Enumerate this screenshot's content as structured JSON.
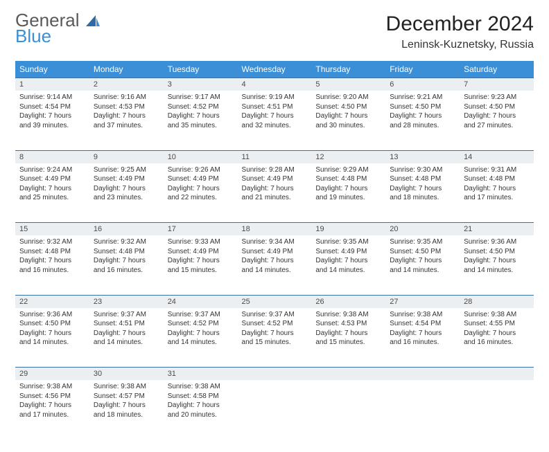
{
  "brand": {
    "name1": "General",
    "name2": "Blue"
  },
  "title": "December 2024",
  "location": "Leninsk-Kuznetsky, Russia",
  "columns": [
    "Sunday",
    "Monday",
    "Tuesday",
    "Wednesday",
    "Thursday",
    "Friday",
    "Saturday"
  ],
  "colors": {
    "header_bg": "#3a8fd6",
    "header_fg": "#ffffff",
    "daynum_bg": "#eceff1",
    "daynum_border": "#3a6ea5",
    "logo_gray": "#5a5a5a",
    "logo_blue": "#3a8fd6"
  },
  "weeks": [
    [
      {
        "n": "1",
        "sr": "Sunrise: 9:14 AM",
        "ss": "Sunset: 4:54 PM",
        "dl1": "Daylight: 7 hours",
        "dl2": "and 39 minutes."
      },
      {
        "n": "2",
        "sr": "Sunrise: 9:16 AM",
        "ss": "Sunset: 4:53 PM",
        "dl1": "Daylight: 7 hours",
        "dl2": "and 37 minutes."
      },
      {
        "n": "3",
        "sr": "Sunrise: 9:17 AM",
        "ss": "Sunset: 4:52 PM",
        "dl1": "Daylight: 7 hours",
        "dl2": "and 35 minutes."
      },
      {
        "n": "4",
        "sr": "Sunrise: 9:19 AM",
        "ss": "Sunset: 4:51 PM",
        "dl1": "Daylight: 7 hours",
        "dl2": "and 32 minutes."
      },
      {
        "n": "5",
        "sr": "Sunrise: 9:20 AM",
        "ss": "Sunset: 4:50 PM",
        "dl1": "Daylight: 7 hours",
        "dl2": "and 30 minutes."
      },
      {
        "n": "6",
        "sr": "Sunrise: 9:21 AM",
        "ss": "Sunset: 4:50 PM",
        "dl1": "Daylight: 7 hours",
        "dl2": "and 28 minutes."
      },
      {
        "n": "7",
        "sr": "Sunrise: 9:23 AM",
        "ss": "Sunset: 4:50 PM",
        "dl1": "Daylight: 7 hours",
        "dl2": "and 27 minutes."
      }
    ],
    [
      {
        "n": "8",
        "sr": "Sunrise: 9:24 AM",
        "ss": "Sunset: 4:49 PM",
        "dl1": "Daylight: 7 hours",
        "dl2": "and 25 minutes."
      },
      {
        "n": "9",
        "sr": "Sunrise: 9:25 AM",
        "ss": "Sunset: 4:49 PM",
        "dl1": "Daylight: 7 hours",
        "dl2": "and 23 minutes."
      },
      {
        "n": "10",
        "sr": "Sunrise: 9:26 AM",
        "ss": "Sunset: 4:49 PM",
        "dl1": "Daylight: 7 hours",
        "dl2": "and 22 minutes."
      },
      {
        "n": "11",
        "sr": "Sunrise: 9:28 AM",
        "ss": "Sunset: 4:49 PM",
        "dl1": "Daylight: 7 hours",
        "dl2": "and 21 minutes."
      },
      {
        "n": "12",
        "sr": "Sunrise: 9:29 AM",
        "ss": "Sunset: 4:48 PM",
        "dl1": "Daylight: 7 hours",
        "dl2": "and 19 minutes."
      },
      {
        "n": "13",
        "sr": "Sunrise: 9:30 AM",
        "ss": "Sunset: 4:48 PM",
        "dl1": "Daylight: 7 hours",
        "dl2": "and 18 minutes."
      },
      {
        "n": "14",
        "sr": "Sunrise: 9:31 AM",
        "ss": "Sunset: 4:48 PM",
        "dl1": "Daylight: 7 hours",
        "dl2": "and 17 minutes."
      }
    ],
    [
      {
        "n": "15",
        "sr": "Sunrise: 9:32 AM",
        "ss": "Sunset: 4:48 PM",
        "dl1": "Daylight: 7 hours",
        "dl2": "and 16 minutes."
      },
      {
        "n": "16",
        "sr": "Sunrise: 9:32 AM",
        "ss": "Sunset: 4:48 PM",
        "dl1": "Daylight: 7 hours",
        "dl2": "and 16 minutes."
      },
      {
        "n": "17",
        "sr": "Sunrise: 9:33 AM",
        "ss": "Sunset: 4:49 PM",
        "dl1": "Daylight: 7 hours",
        "dl2": "and 15 minutes."
      },
      {
        "n": "18",
        "sr": "Sunrise: 9:34 AM",
        "ss": "Sunset: 4:49 PM",
        "dl1": "Daylight: 7 hours",
        "dl2": "and 14 minutes."
      },
      {
        "n": "19",
        "sr": "Sunrise: 9:35 AM",
        "ss": "Sunset: 4:49 PM",
        "dl1": "Daylight: 7 hours",
        "dl2": "and 14 minutes."
      },
      {
        "n": "20",
        "sr": "Sunrise: 9:35 AM",
        "ss": "Sunset: 4:50 PM",
        "dl1": "Daylight: 7 hours",
        "dl2": "and 14 minutes."
      },
      {
        "n": "21",
        "sr": "Sunrise: 9:36 AM",
        "ss": "Sunset: 4:50 PM",
        "dl1": "Daylight: 7 hours",
        "dl2": "and 14 minutes."
      }
    ],
    [
      {
        "n": "22",
        "sr": "Sunrise: 9:36 AM",
        "ss": "Sunset: 4:50 PM",
        "dl1": "Daylight: 7 hours",
        "dl2": "and 14 minutes."
      },
      {
        "n": "23",
        "sr": "Sunrise: 9:37 AM",
        "ss": "Sunset: 4:51 PM",
        "dl1": "Daylight: 7 hours",
        "dl2": "and 14 minutes."
      },
      {
        "n": "24",
        "sr": "Sunrise: 9:37 AM",
        "ss": "Sunset: 4:52 PM",
        "dl1": "Daylight: 7 hours",
        "dl2": "and 14 minutes."
      },
      {
        "n": "25",
        "sr": "Sunrise: 9:37 AM",
        "ss": "Sunset: 4:52 PM",
        "dl1": "Daylight: 7 hours",
        "dl2": "and 15 minutes."
      },
      {
        "n": "26",
        "sr": "Sunrise: 9:38 AM",
        "ss": "Sunset: 4:53 PM",
        "dl1": "Daylight: 7 hours",
        "dl2": "and 15 minutes."
      },
      {
        "n": "27",
        "sr": "Sunrise: 9:38 AM",
        "ss": "Sunset: 4:54 PM",
        "dl1": "Daylight: 7 hours",
        "dl2": "and 16 minutes."
      },
      {
        "n": "28",
        "sr": "Sunrise: 9:38 AM",
        "ss": "Sunset: 4:55 PM",
        "dl1": "Daylight: 7 hours",
        "dl2": "and 16 minutes."
      }
    ],
    [
      {
        "n": "29",
        "sr": "Sunrise: 9:38 AM",
        "ss": "Sunset: 4:56 PM",
        "dl1": "Daylight: 7 hours",
        "dl2": "and 17 minutes."
      },
      {
        "n": "30",
        "sr": "Sunrise: 9:38 AM",
        "ss": "Sunset: 4:57 PM",
        "dl1": "Daylight: 7 hours",
        "dl2": "and 18 minutes."
      },
      {
        "n": "31",
        "sr": "Sunrise: 9:38 AM",
        "ss": "Sunset: 4:58 PM",
        "dl1": "Daylight: 7 hours",
        "dl2": "and 20 minutes."
      },
      null,
      null,
      null,
      null
    ]
  ]
}
